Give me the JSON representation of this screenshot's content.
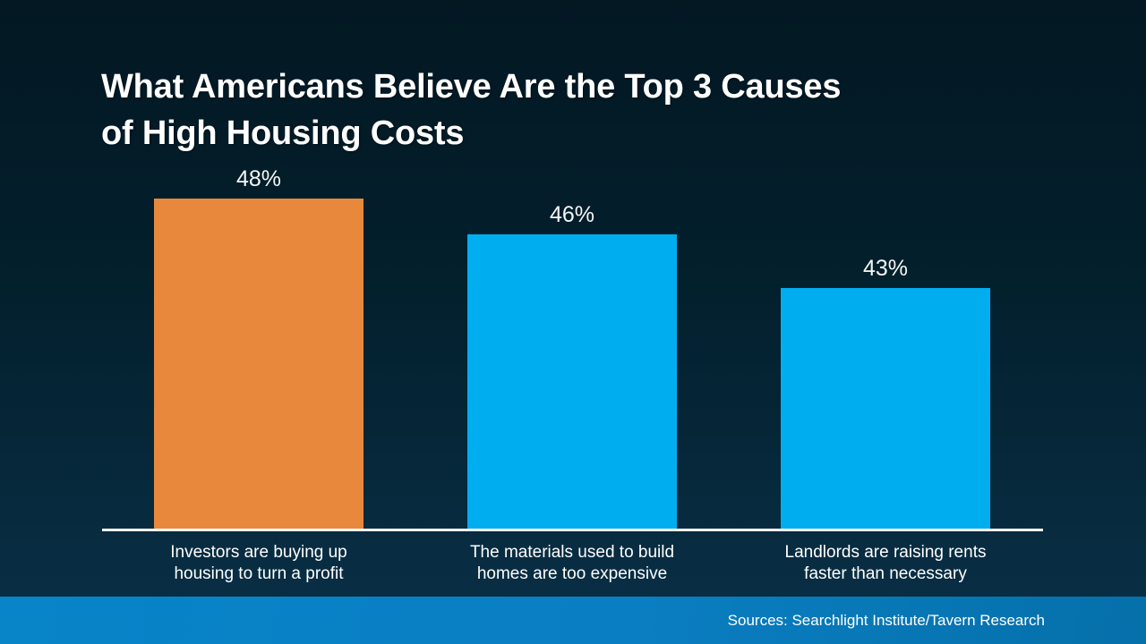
{
  "slide": {
    "title_line1": "What Americans Believe Are the Top 3 Causes",
    "title_line2": "of High Housing Costs",
    "source": "Sources: Searchlight Institute/Tavern Research"
  },
  "colors": {
    "background_top": "#031823",
    "background_bottom": "#0A3048",
    "bar_orange": "#E8883C",
    "bar_blue": "#00AEEF",
    "baseline": "#FFFFFF",
    "footer_left": "#0884C9",
    "footer_right": "#0570AA",
    "text": "#FFFFFF"
  },
  "chart_data": {
    "type": "bar",
    "title": "What Americans Believe Are the Top 3 Causes of High Housing Costs",
    "categories": [
      "Investors are buying up housing to turn a profit",
      "The materials used to build homes are too expensive",
      "Landlords are raising rents faster than necessary"
    ],
    "values": [
      48,
      46,
      43
    ],
    "data_labels": [
      "48%",
      "46%",
      "43%"
    ],
    "unit": "%",
    "xlabel": "",
    "ylabel": "",
    "ylim": [
      29.5,
      50
    ],
    "grid": false,
    "legend": false,
    "bar_colors": [
      "#E8883C",
      "#00AEEF",
      "#00AEEF"
    ],
    "bars": [
      {
        "value": 48,
        "value_label": "48%",
        "label_line1": "Investors are buying up",
        "label_line2": "housing to turn a profit",
        "color": "#E8883C"
      },
      {
        "value": 46,
        "value_label": "46%",
        "label_line1": "The materials used to build",
        "label_line2": "homes are too expensive",
        "color": "#00AEEF"
      },
      {
        "value": 43,
        "value_label": "43%",
        "label_line1": "Landlords are raising rents",
        "label_line2": "faster than necessary",
        "color": "#00AEEF"
      }
    ]
  }
}
